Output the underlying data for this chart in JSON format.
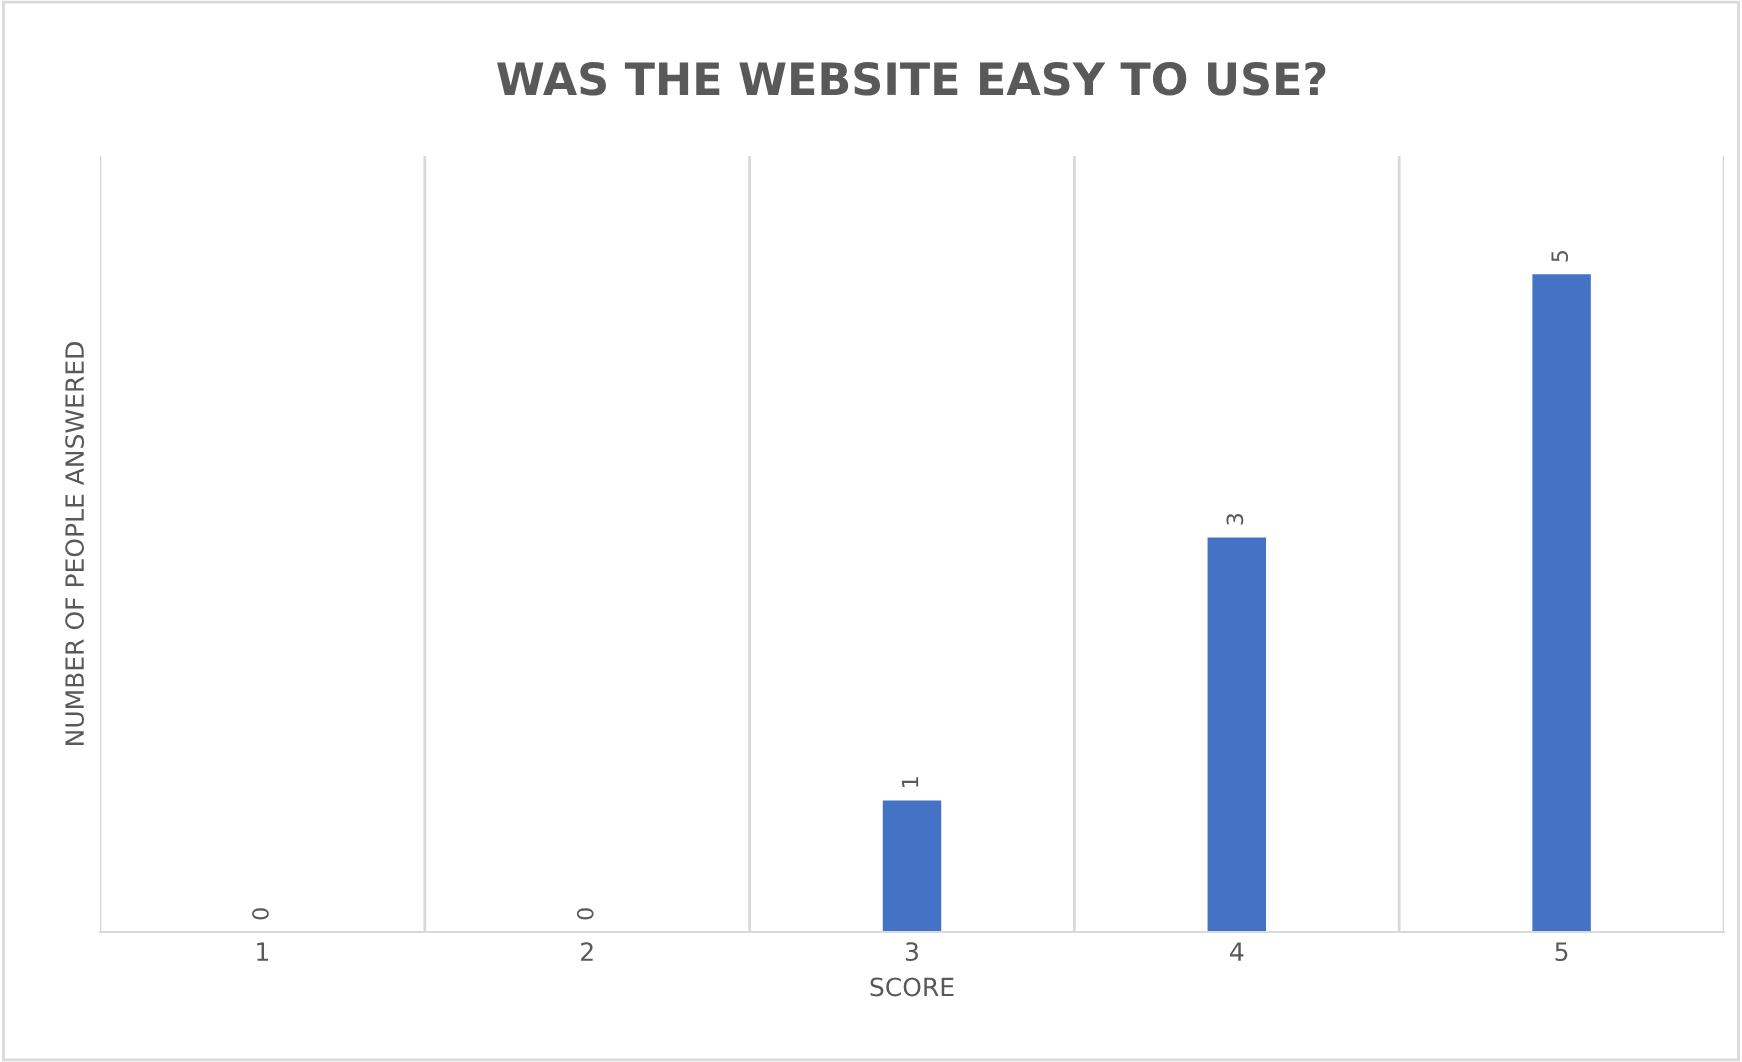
{
  "chart_data": {
    "type": "bar",
    "title": "WAS THE WEBSITE EASY TO USE?",
    "xlabel": "SCORE",
    "ylabel": "NUMBER OF PEOPLE ANSWERED",
    "categories": [
      "1",
      "2",
      "3",
      "4",
      "5"
    ],
    "values": [
      0,
      0,
      1,
      3,
      5
    ],
    "color": "#4472c4",
    "data_labels": true,
    "grid": "x",
    "tick_labels": "x"
  }
}
